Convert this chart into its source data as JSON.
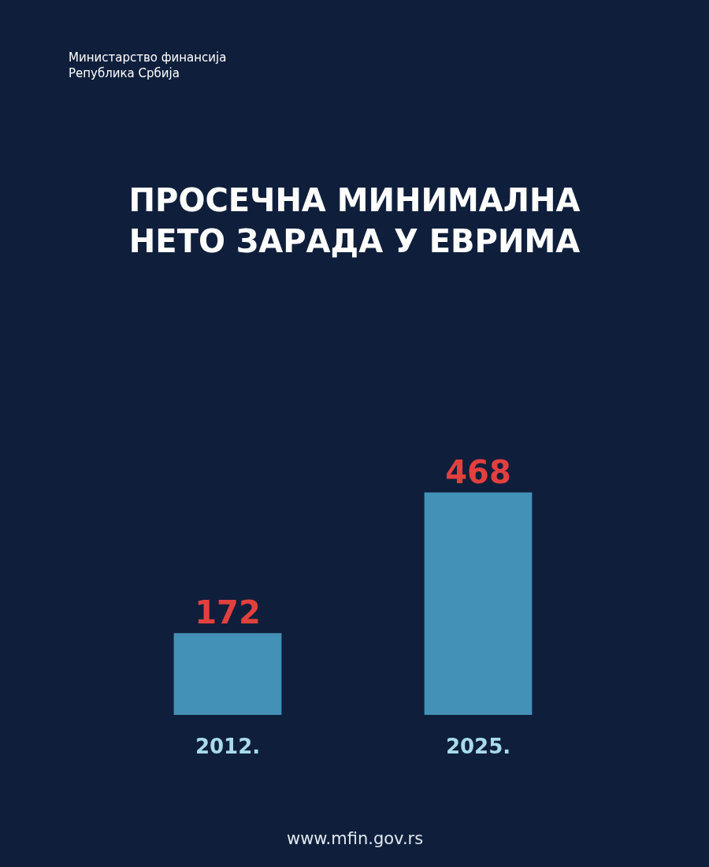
{
  "chart_data": {
    "type": "bar",
    "title": "ПРОСЕЧНА МИНИМАЛНА\nНЕТО ЗАРАДА У ЕВРИМА",
    "categories": [
      "2012.",
      "2025."
    ],
    "values": [
      172,
      468
    ],
    "color": "#4391b6",
    "data_labels": true,
    "annotations": [
      "Министарство финансија\nРепублика Србија",
      "www.mfin.gov.rs"
    ]
  }
}
